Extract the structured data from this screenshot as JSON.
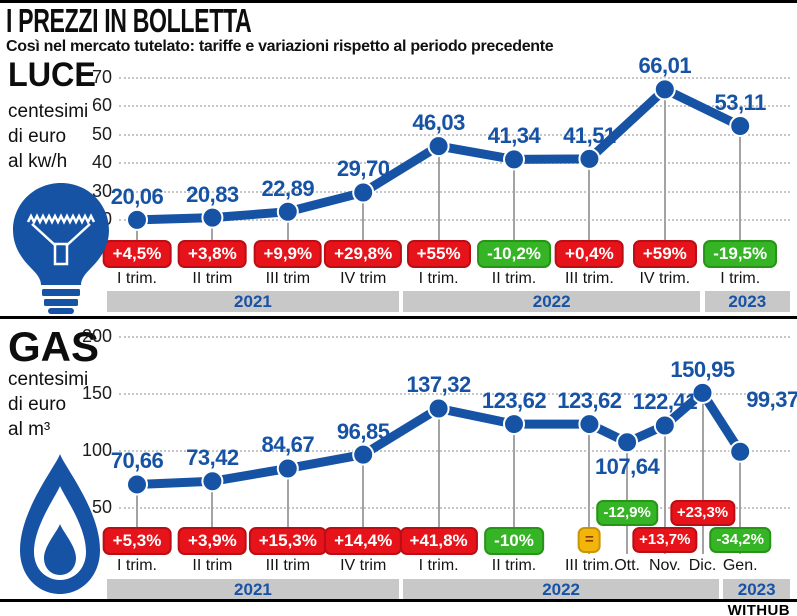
{
  "header": {
    "title": "I PREZZI IN BOLLETTA",
    "subtitle": "Così nel mercato tutelato: tariffe e variazioni rispetto al periodo precedente"
  },
  "footer": {
    "brand": "WITHUB"
  },
  "colors": {
    "blue": "#1753a4",
    "red": "#e6131a",
    "green": "#35b525",
    "yellow": "#f2b50c",
    "bar_gray": "#c8c8c8",
    "grid_gray": "#c6c6c6",
    "dropline_gray": "#a3a3a3"
  },
  "chart_data": [
    {
      "type": "line",
      "section": "LUCE",
      "unit": "centesimi\ndi euro\nal kw/h",
      "icon": "lightbulb-icon",
      "ylim": [
        20,
        70
      ],
      "yticks": [
        70,
        60,
        50,
        40,
        30,
        20
      ],
      "x_units": [
        0,
        1,
        2,
        3,
        4,
        5,
        6,
        7,
        8
      ],
      "legend": "grid dotted, year bands below axis",
      "points": [
        {
          "label": "I trim.",
          "year": "2021",
          "value": 20.06,
          "value_label": "20,06",
          "change": "+4,5%",
          "change_color": "red"
        },
        {
          "label": "II trim",
          "year": "2021",
          "value": 20.83,
          "value_label": "20,83",
          "change": "+3,8%",
          "change_color": "red"
        },
        {
          "label": "III trim",
          "year": "2021",
          "value": 22.89,
          "value_label": "22,89",
          "change": "+9,9%",
          "change_color": "red"
        },
        {
          "label": "IV trim",
          "year": "2021",
          "value": 29.7,
          "value_label": "29,70",
          "change": "+29,8%",
          "change_color": "red"
        },
        {
          "label": "I trim.",
          "year": "2022",
          "value": 46.03,
          "value_label": "46,03",
          "change": "+55%",
          "change_color": "red"
        },
        {
          "label": "II trim.",
          "year": "2022",
          "value": 41.34,
          "value_label": "41,34",
          "change": "-10,2%",
          "change_color": "green"
        },
        {
          "label": "III trim.",
          "year": "2022",
          "value": 41.51,
          "value_label": "41,51",
          "change": "+0,4%",
          "change_color": "red"
        },
        {
          "label": "IV trim.",
          "year": "2022",
          "value": 66.01,
          "value_label": "66,01",
          "change": "+59%",
          "change_color": "red"
        },
        {
          "label": "I trim.",
          "year": "2023",
          "value": 53.11,
          "value_label": "53,11",
          "change": "-19,5%",
          "change_color": "green"
        }
      ]
    },
    {
      "type": "line",
      "section": "GAS",
      "unit": "centesimi\ndi euro\nal m³",
      "icon": "flame-icon",
      "ylim": [
        50,
        200
      ],
      "yticks": [
        200,
        150,
        100,
        50
      ],
      "x_units": [
        0,
        1,
        2,
        3,
        4,
        5,
        6,
        6.5,
        7,
        7.5,
        8
      ],
      "legend": "grid dotted, year bands below axis",
      "points": [
        {
          "label": "I trim.",
          "year": "2021",
          "value": 70.66,
          "value_label": "70,66",
          "change": "+5,3%",
          "change_color": "red"
        },
        {
          "label": "II trim",
          "year": "2021",
          "value": 73.42,
          "value_label": "73,42",
          "change": "+3,9%",
          "change_color": "red"
        },
        {
          "label": "III trim",
          "year": "2021",
          "value": 84.67,
          "value_label": "84,67",
          "change": "+15,3%",
          "change_color": "red"
        },
        {
          "label": "IV trim",
          "year": "2021",
          "value": 96.85,
          "value_label": "96,85",
          "change": "+14,4%",
          "change_color": "red"
        },
        {
          "label": "I trim.",
          "year": "2022",
          "value": 137.32,
          "value_label": "137,32",
          "change": "+41,8%",
          "change_color": "red"
        },
        {
          "label": "II trim.",
          "year": "2022",
          "value": 123.62,
          "value_label": "123,62",
          "change": "-10%",
          "change_color": "green"
        },
        {
          "label": "III trim.",
          "year": "2022",
          "value": 123.62,
          "value_label": "123,62",
          "change": "=",
          "change_color": "yellow"
        },
        {
          "label": "Ott.",
          "year": "2022",
          "value": 107.64,
          "value_label": "107,64",
          "change": "-12,9%",
          "change_color": "green",
          "badge_row": "raised",
          "value_pos": "below"
        },
        {
          "label": "Nov.",
          "year": "2022",
          "value": 122.41,
          "value_label": "122,41",
          "change": "+13,7%",
          "change_color": "red"
        },
        {
          "label": "Dic.",
          "year": "2022",
          "value": 150.95,
          "value_label": "150,95",
          "change": "+23,3%",
          "change_color": "red",
          "badge_row": "raised"
        },
        {
          "label": "Gen.",
          "year": "2023",
          "value": 99.37,
          "value_label": "99,37",
          "change": "-34,2%",
          "change_color": "green",
          "value_pos": "above-right"
        }
      ]
    }
  ]
}
